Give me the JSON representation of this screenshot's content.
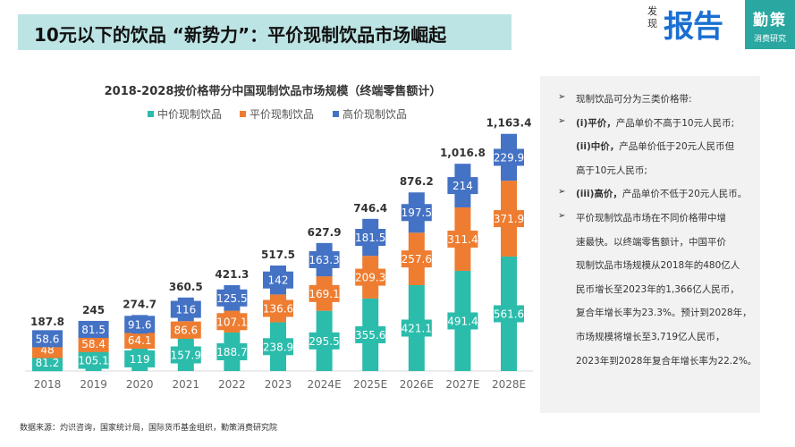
{
  "header": {
    "title": "10元以下的饮品 “新势力”：平价现制饮品市场崛起",
    "logo_small": "发现",
    "logo_big": "报告",
    "brand_name": "勤策",
    "brand_sub": "消费研究"
  },
  "colors": {
    "mid": "#2bbcab",
    "flat": "#ee7d31",
    "high": "#4472c4"
  },
  "chart_data": {
    "type": "bar",
    "stacked": true,
    "title": "2018-2028按价格带分中国现制饮品市场规模（终端零售额计）",
    "categories": [
      "2018",
      "2019",
      "2020",
      "2021",
      "2022",
      "2023",
      "2024E",
      "2025E",
      "2026E",
      "2027E",
      "2028E"
    ],
    "series": [
      {
        "name": "中价现制饮品",
        "values": [
          81.2,
          105.1,
          119,
          157.9,
          188.7,
          238.9,
          295.5,
          355.6,
          421.1,
          491.4,
          561.6
        ]
      },
      {
        "name": "平价现制饮品",
        "values": [
          48,
          58.4,
          64.1,
          86.6,
          107.1,
          136.6,
          169.1,
          209.3,
          257.6,
          311.4,
          371.9
        ]
      },
      {
        "name": "高价现制饮品",
        "values": [
          58.6,
          81.5,
          91.6,
          116,
          125.5,
          142,
          163.3,
          181.5,
          197.5,
          214,
          229.9
        ]
      }
    ],
    "totals": [
      "187.8",
      "245",
      "274.7",
      "360.5",
      "421.3",
      "517.5",
      "627.9",
      "746.4",
      "876.2",
      "1,016.8",
      "1,163.4"
    ],
    "legend": "top",
    "grid": false
  },
  "panel": {
    "lines": [
      {
        "bullet": true,
        "bold": "",
        "text": "现制饮品可分为三类价格带:"
      },
      {
        "bullet": true,
        "bold": "(i)平价，",
        "text": "产品单价不高于10元人民币;"
      },
      {
        "bullet": false,
        "bold": "(ii)中价，",
        "text": "产品单价低于20元人民币但"
      },
      {
        "bullet": false,
        "bold": "",
        "text": "高于10元人民币;"
      },
      {
        "bullet": true,
        "bold": "(iii)高价，",
        "text": "产品单价不低于20元人民币。"
      },
      {
        "bullet": true,
        "bold": "",
        "text": "平价现制饮品市场在不同价格带中增"
      },
      {
        "bullet": false,
        "bold": "",
        "text": "速最快。以终端零售额计，中国平价"
      },
      {
        "bullet": false,
        "bold": "",
        "text": "现制饮品市场规模从2018年的480亿人"
      },
      {
        "bullet": false,
        "bold": "",
        "text": "民币增长至2023年的1,366亿人民币，"
      },
      {
        "bullet": false,
        "bold": "",
        "text": "复合年增长率为23.3%。预计到2028年，"
      },
      {
        "bullet": false,
        "bold": "",
        "text": "市场规模将增长至3,719亿人民币，"
      },
      {
        "bullet": false,
        "bold": "",
        "text": "2023年到2028年复合年增长率为22.2%。"
      }
    ]
  },
  "footer": {
    "source": "数据来源：灼识咨询，国家统计局，国际货币基金组织，勤策消费研究院"
  }
}
